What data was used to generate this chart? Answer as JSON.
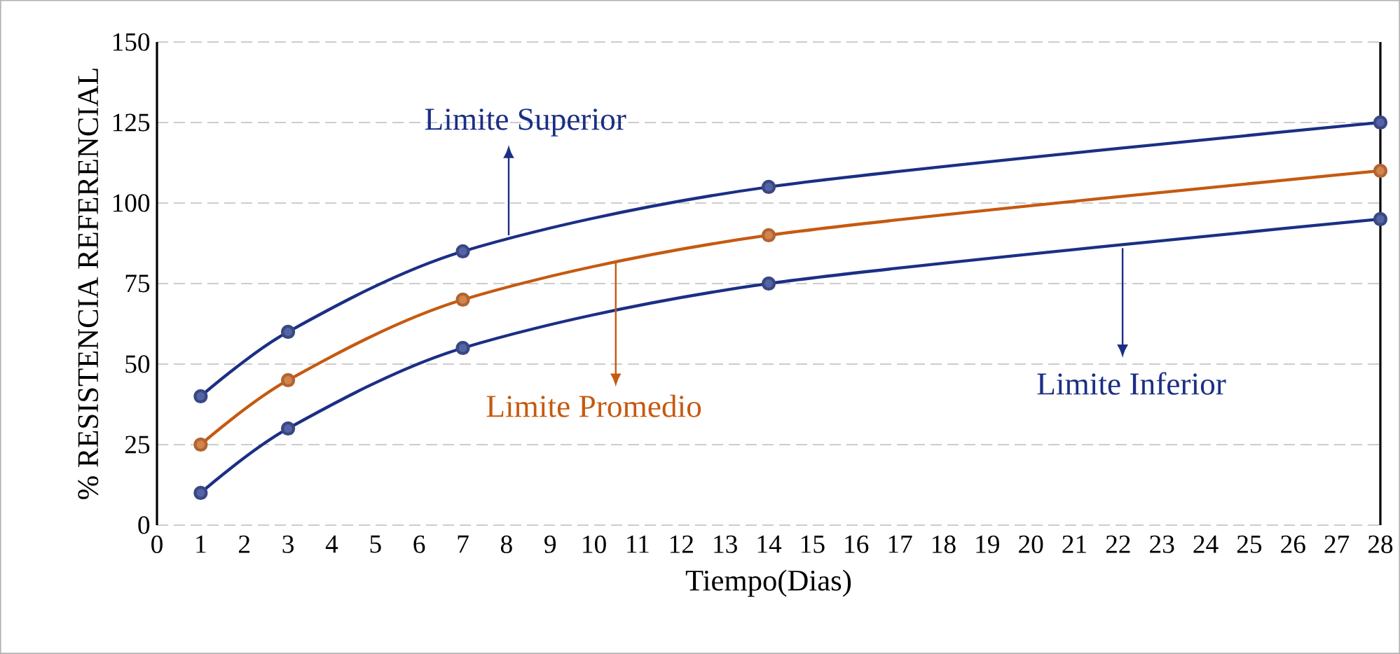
{
  "chart_data": {
    "type": "line",
    "xlabel": "Tiempo(Dias)",
    "ylabel": "% RESISTENCIA REFERENCIAL",
    "x": [
      1,
      3,
      7,
      14,
      28
    ],
    "series": [
      {
        "color": "#1b2f85",
        "values": [
          40,
          60,
          85,
          105,
          125
        ]
      },
      {
        "color": "#c55a11",
        "values": [
          25,
          45,
          70,
          90,
          110
        ]
      },
      {
        "color": "#1b2f85",
        "values": [
          10,
          30,
          55,
          75,
          95
        ]
      }
    ],
    "annotations": [
      {
        "text": "Limite Superior",
        "x": 8.05,
        "y": 90
      },
      {
        "text": "Limite Promedio",
        "x": 10.5,
        "y": 82
      },
      {
        "text": "Limite Inferior",
        "x": 22.1,
        "y": 86
      }
    ],
    "xlim": [
      0,
      28
    ],
    "xticks": [
      0,
      1,
      2,
      3,
      4,
      5,
      6,
      7,
      8,
      9,
      10,
      11,
      12,
      13,
      14,
      15,
      16,
      17,
      18,
      19,
      20,
      21,
      22,
      23,
      24,
      25,
      26,
      27,
      28
    ],
    "ylim": [
      0,
      150
    ],
    "yticks": [
      0,
      25,
      50,
      75,
      100,
      125,
      150
    ],
    "grid": "y",
    "marker": "circle",
    "line_style": "solid"
  }
}
